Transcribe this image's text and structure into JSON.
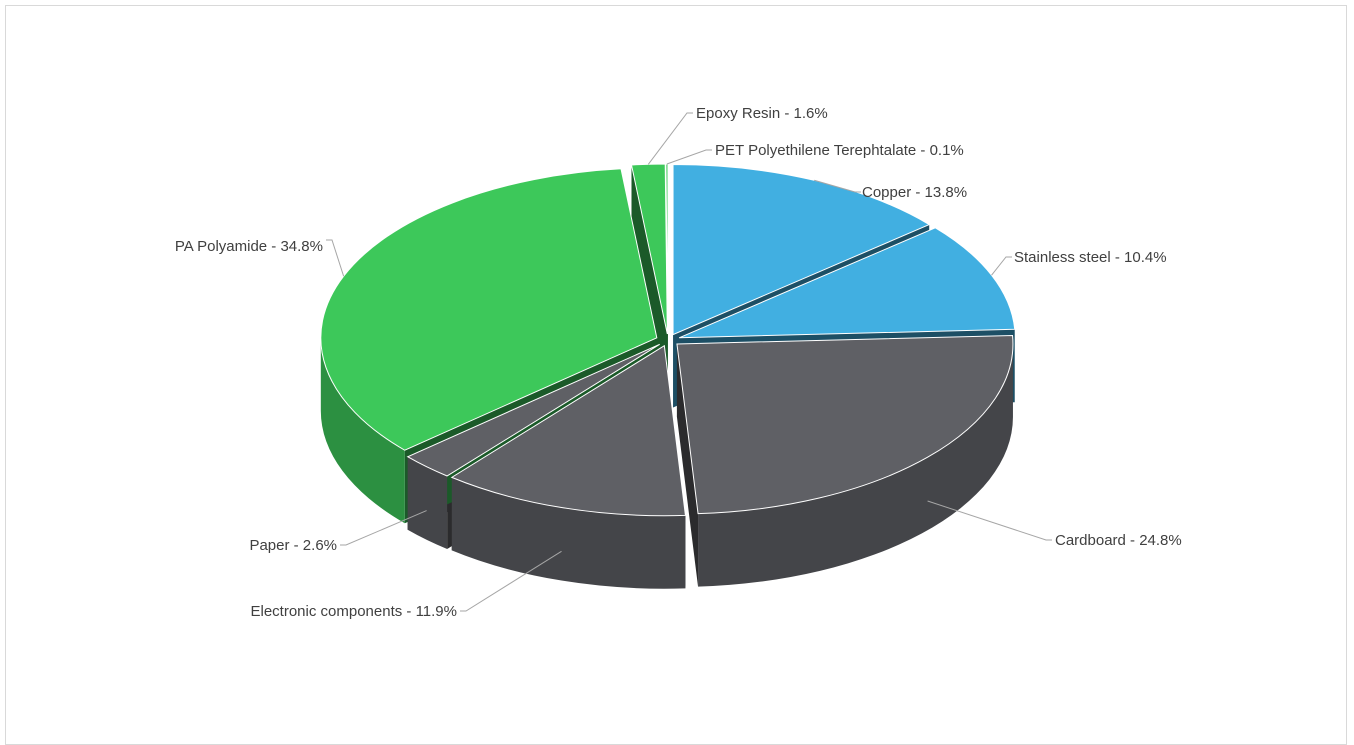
{
  "chart_data": {
    "type": "pie",
    "style": "3d-exploded",
    "title": "",
    "unit": "%",
    "slices": [
      {
        "label": "Copper",
        "value": 13.8,
        "color": "#41afe1",
        "label_text": "Copper - 13.8%"
      },
      {
        "label": "Stainless steel",
        "value": 10.4,
        "color": "#41afe1",
        "label_text": "Stainless steel - 10.4%"
      },
      {
        "label": "Cardboard",
        "value": 24.8,
        "color": "#5f6065",
        "label_text": "Cardboard - 24.8%"
      },
      {
        "label": "Electronic components",
        "value": 11.9,
        "color": "#5f6065",
        "label_text": "Electronic components - 11.9%"
      },
      {
        "label": "Paper",
        "value": 2.6,
        "color": "#5f6065",
        "label_text": "Paper - 2.6%"
      },
      {
        "label": "PA Polyamide",
        "value": 34.8,
        "color": "#3dc85a",
        "label_text": "PA Polyamide - 34.8%"
      },
      {
        "label": "Epoxy Resin",
        "value": 1.6,
        "color": "#3dc85a",
        "label_text": "Epoxy Resin - 1.6%"
      },
      {
        "label": "PET Polyethilene Terephtalate",
        "value": 0.1,
        "color": "#3dc85a",
        "label_text": "PET Polyethilene Terephtalate - 0.1%"
      }
    ],
    "legend": "none",
    "data_labels": "outside-with-leader-lines"
  }
}
